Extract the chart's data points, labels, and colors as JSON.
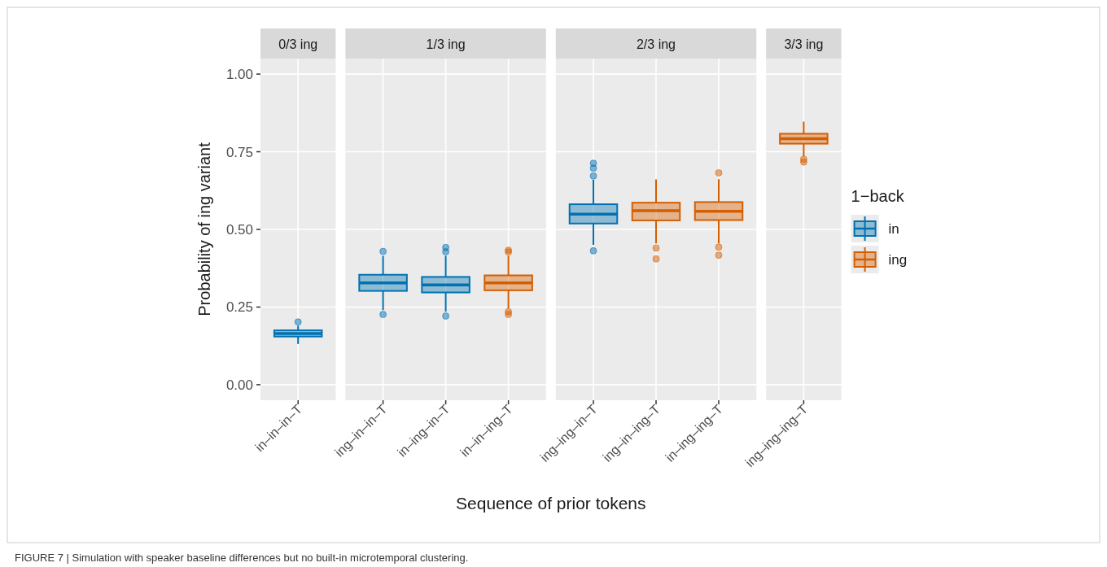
{
  "chart_data": [
    {
      "type": "box",
      "title": "0/3 ing",
      "ylabel": "Probability of ing variant",
      "annotations": [
        "FIGURE 7 | Simulation with speaker baseline differences but no built-in microtemporal clustering."
      ],
      "categories": [
        "in–in–in–T"
      ],
      "ylim": [
        -0.05,
        1.05
      ],
      "yticks": [
        {
          "value": 0,
          "label": "0.00"
        },
        {
          "value": 0.25,
          "label": "0.25"
        },
        {
          "value": 0.5,
          "label": "0.50"
        },
        {
          "value": 0.75,
          "label": "0.75"
        },
        {
          "value": 1,
          "label": "1.00"
        }
      ],
      "grid": true,
      "series": [
        {
          "color": "#0072b2",
          "boxes": [
            {
              "low": 0.131,
              "q1": 0.155,
              "median": 0.165,
              "q3": 0.175,
              "high": 0.19,
              "outliers": [
                0.202
              ]
            }
          ]
        }
      ]
    },
    {
      "type": "box",
      "title": "1/3 ing",
      "xlabel": "Sequence of prior tokens",
      "categories": [
        "ing–in–in–T",
        "in–ing–in–T",
        "in–in–ing–T"
      ],
      "ylim": [
        -0.05,
        1.05
      ],
      "yticks": [
        0,
        0.25,
        0.5,
        0.75,
        1
      ],
      "grid": true,
      "tick_labels": "x",
      "series": [
        {
          "color": "#0072b2",
          "boxes": [
            {
              "low": 0.24,
              "q1": 0.302,
              "median": 0.328,
              "q3": 0.354,
              "high": 0.415,
              "outliers": [
                0.429,
                0.226
              ]
            },
            {
              "low": 0.235,
              "q1": 0.297,
              "median": 0.321,
              "q3": 0.347,
              "high": 0.415,
              "outliers": [
                0.442,
                0.428,
                0.221
              ]
            },
            null
          ]
        },
        {
          "color": "#d55e00",
          "boxes": [
            null,
            null,
            {
              "low": 0.245,
              "q1": 0.304,
              "median": 0.328,
              "q3": 0.352,
              "high": 0.415,
              "outliers": [
                0.433,
                0.427,
                0.235,
                0.226
              ]
            }
          ]
        }
      ]
    },
    {
      "type": "box",
      "title": "2/3 ing",
      "categories": [
        "ing–ing–in–T",
        "ing–in–ing–T",
        "in–ing–ing–T"
      ],
      "ylim": [
        -0.05,
        1.05
      ],
      "yticks": [
        0,
        0.25,
        0.5,
        0.75,
        1
      ],
      "grid": true,
      "tick_labels": "x",
      "series": [
        {
          "color": "#0072b2",
          "boxes": [
            {
              "low": 0.45,
              "q1": 0.519,
              "median": 0.549,
              "q3": 0.581,
              "high": 0.66,
              "outliers": [
                0.713,
                0.697,
                0.672,
                0.431
              ]
            },
            null,
            null
          ]
        },
        {
          "color": "#d55e00",
          "boxes": [
            null,
            {
              "low": 0.455,
              "q1": 0.529,
              "median": 0.56,
              "q3": 0.586,
              "high": 0.661,
              "outliers": [
                0.44,
                0.405
              ]
            },
            {
              "low": 0.455,
              "q1": 0.53,
              "median": 0.558,
              "q3": 0.588,
              "high": 0.662,
              "outliers": [
                0.682,
                0.443,
                0.417
              ]
            }
          ]
        }
      ]
    },
    {
      "type": "box",
      "title": "3/3 ing",
      "legend_title": "1−back",
      "categories": [
        "ing–ing–ing–T"
      ],
      "ylim": [
        -0.05,
        1.05
      ],
      "yticks": [
        0,
        0.25,
        0.5,
        0.75,
        1
      ],
      "grid": true,
      "legend": "right",
      "tick_labels": "x",
      "series": [
        {
          "name": "in",
          "color": "#0072b2",
          "boxes": [
            null
          ]
        },
        {
          "name": "ing",
          "color": "#d55e00",
          "boxes": [
            {
              "low": 0.735,
              "q1": 0.776,
              "median": 0.792,
              "q3": 0.808,
              "high": 0.847,
              "outliers": [
                0.726,
                0.717
              ]
            }
          ]
        }
      ]
    }
  ]
}
